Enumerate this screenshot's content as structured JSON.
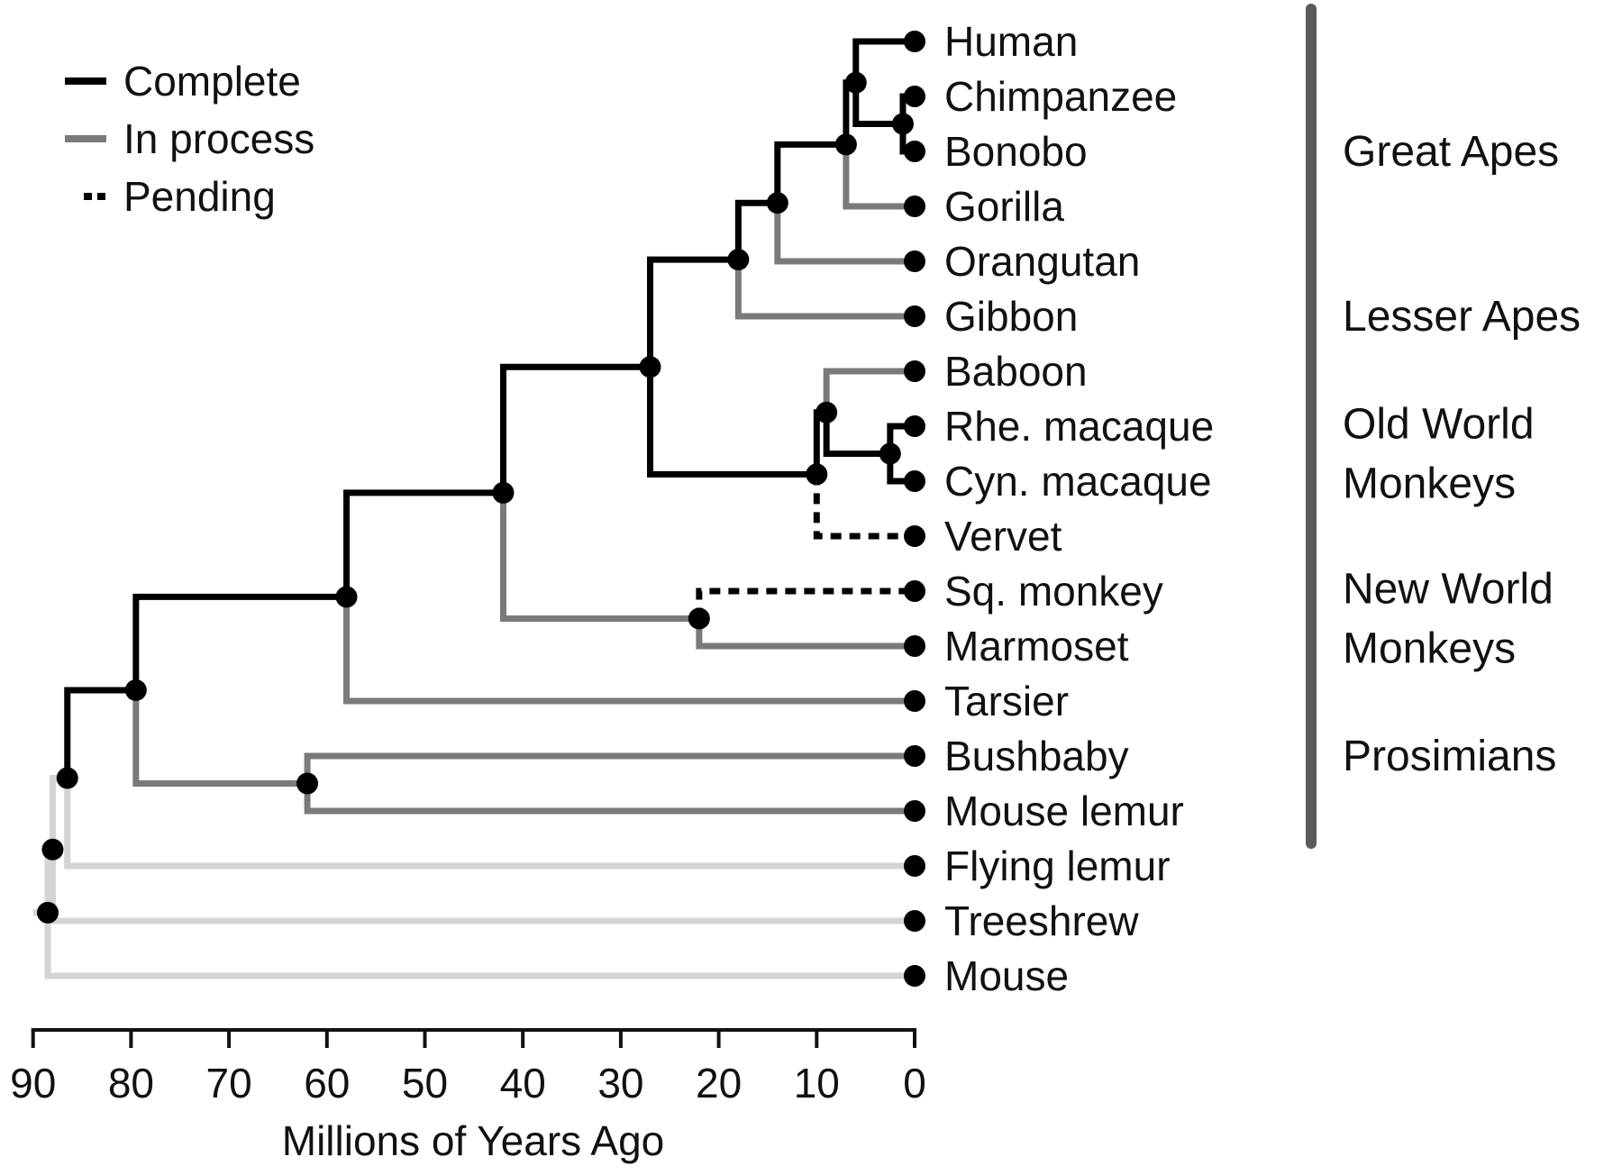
{
  "colors": {
    "complete": "#000000",
    "in_process": "#7a7a7a",
    "outgroup": "#d4d4d4",
    "group_bar": "#5b5b5b",
    "node": "#000000"
  },
  "legend": [
    {
      "label": "Complete",
      "style": "complete"
    },
    {
      "label": "In process",
      "style": "in_process"
    },
    {
      "label": "Pending",
      "style": "pending"
    }
  ],
  "axis": {
    "title": "Millions of Years Ago",
    "ticks": [
      90,
      80,
      70,
      60,
      50,
      40,
      30,
      20,
      10,
      0
    ],
    "range": [
      90,
      0
    ]
  },
  "taxa": [
    {
      "key": "human",
      "label": "Human"
    },
    {
      "key": "chimp",
      "label": "Chimpanzee"
    },
    {
      "key": "bonobo",
      "label": "Bonobo"
    },
    {
      "key": "gorilla",
      "label": "Gorilla"
    },
    {
      "key": "orangutan",
      "label": "Orangutan"
    },
    {
      "key": "gibbon",
      "label": "Gibbon"
    },
    {
      "key": "baboon",
      "label": "Baboon"
    },
    {
      "key": "rhesus",
      "label": "Rhe. macaque"
    },
    {
      "key": "cyno",
      "label": "Cyn. macaque"
    },
    {
      "key": "vervet",
      "label": "Vervet"
    },
    {
      "key": "squirrel",
      "label": "Sq. monkey"
    },
    {
      "key": "marmoset",
      "label": "Marmoset"
    },
    {
      "key": "tarsier",
      "label": "Tarsier"
    },
    {
      "key": "bushbaby",
      "label": "Bushbaby"
    },
    {
      "key": "mouselemur",
      "label": "Mouse lemur"
    },
    {
      "key": "flyinglemur",
      "label": "Flying lemur"
    },
    {
      "key": "treeshrew",
      "label": "Treeshrew"
    },
    {
      "key": "mouse",
      "label": "Mouse"
    }
  ],
  "groups": [
    {
      "lines": [
        "Great Apes"
      ],
      "from": 0,
      "to": 4
    },
    {
      "lines": [
        "Lesser Apes"
      ],
      "from": 5,
      "to": 5
    },
    {
      "lines": [
        "Old World",
        "Monkeys"
      ],
      "from": 6,
      "to": 9
    },
    {
      "lines": [
        "New World",
        "Monkeys"
      ],
      "from": 10,
      "to": 11
    },
    {
      "lines": [
        "Prosimians"
      ],
      "from": 12,
      "to": 14
    }
  ],
  "nodes": [
    {
      "id": "hc",
      "mya": 1.2,
      "children": [
        "bonobo",
        "chimp"
      ],
      "status": [
        "complete",
        "complete"
      ]
    },
    {
      "id": "hcb",
      "mya": 6,
      "children": [
        "human",
        "hc"
      ],
      "status": [
        "complete",
        "complete"
      ]
    },
    {
      "id": "hominini",
      "mya": 7,
      "children": [
        "hcb",
        "gorilla"
      ],
      "status": [
        "complete",
        "in_process"
      ]
    },
    {
      "id": "hominidae",
      "mya": 14,
      "children": [
        "hominini",
        "orangutan"
      ],
      "status": [
        "complete",
        "in_process"
      ]
    },
    {
      "id": "hominoidea",
      "mya": 18,
      "children": [
        "hominidae",
        "gibbon"
      ],
      "status": [
        "complete",
        "in_process"
      ]
    },
    {
      "id": "macaques",
      "mya": 2.5,
      "children": [
        "rhesus",
        "cyno"
      ],
      "status": [
        "complete",
        "complete"
      ]
    },
    {
      "id": "papionini",
      "mya": 9,
      "children": [
        "baboon",
        "macaques"
      ],
      "status": [
        "in_process",
        "complete"
      ]
    },
    {
      "id": "cercopithecidae",
      "mya": 10,
      "children": [
        "papionini",
        "vervet"
      ],
      "status": [
        "complete",
        "pending"
      ]
    },
    {
      "id": "catarrhini",
      "mya": 27,
      "children": [
        "hominoidea",
        "cercopithecidae"
      ],
      "status": [
        "complete",
        "complete"
      ]
    },
    {
      "id": "platyrrhini",
      "mya": 22,
      "children": [
        "squirrel",
        "marmoset"
      ],
      "status": [
        "pending",
        "in_process"
      ]
    },
    {
      "id": "anthropoidea",
      "mya": 42,
      "children": [
        "catarrhini",
        "platyrrhini"
      ],
      "status": [
        "complete",
        "in_process"
      ]
    },
    {
      "id": "haplorhini",
      "mya": 58,
      "children": [
        "anthropoidea",
        "tarsier"
      ],
      "status": [
        "complete",
        "in_process"
      ]
    },
    {
      "id": "strepsirrhini",
      "mya": 62,
      "children": [
        "bushbaby",
        "mouselemur"
      ],
      "status": [
        "in_process",
        "in_process"
      ]
    },
    {
      "id": "primates",
      "mya": 79.5,
      "children": [
        "haplorhini",
        "strepsirrhini"
      ],
      "status": [
        "complete",
        "in_process"
      ]
    },
    {
      "id": "primatomorpha",
      "mya": 86.5,
      "children": [
        "primates",
        "flyinglemur"
      ],
      "status": [
        "complete",
        "outgroup"
      ]
    },
    {
      "id": "euarchonta",
      "mya": 88,
      "children": [
        "primatomorpha",
        "treeshrew"
      ],
      "status": [
        "outgroup",
        "outgroup"
      ]
    },
    {
      "id": "euarchontoglires",
      "mya": 88.5,
      "children": [
        "euarchonta",
        "mouse"
      ],
      "status": [
        "outgroup",
        "outgroup"
      ]
    }
  ],
  "root": {
    "node": "euarchontoglires",
    "stem_to_mya": 90,
    "status": "outgroup"
  }
}
